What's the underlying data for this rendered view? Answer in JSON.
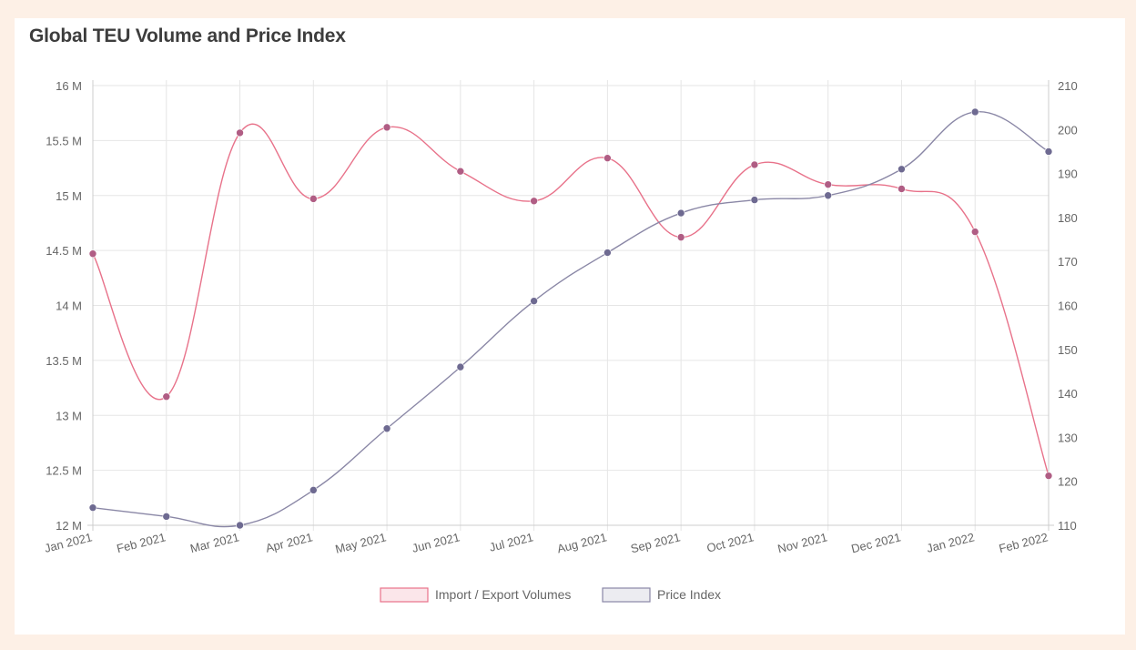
{
  "chart_data": {
    "type": "line",
    "title": "Global TEU Volume and Price Index",
    "categories": [
      "Jan 2021",
      "Feb 2021",
      "Mar 2021",
      "Apr 2021",
      "May 2021",
      "Jun 2021",
      "Jul 2021",
      "Aug 2021",
      "Sep 2021",
      "Oct 2021",
      "Nov 2021",
      "Dec 2021",
      "Jan 2022",
      "Feb 2022"
    ],
    "series": [
      {
        "name": "Import / Export Volumes",
        "axis": "left",
        "color": "#e8728a",
        "point_color": "#b05d84",
        "values": [
          14.47,
          13.17,
          15.57,
          14.97,
          15.62,
          15.22,
          14.95,
          15.34,
          14.62,
          15.28,
          15.1,
          15.06,
          14.67,
          12.45
        ]
      },
      {
        "name": "Price Index",
        "axis": "right",
        "color": "#8a87a6",
        "point_color": "#6e6a91",
        "values": [
          114,
          112,
          110,
          118,
          132,
          146,
          161,
          172,
          181,
          184,
          185,
          191,
          204,
          195
        ]
      }
    ],
    "y_left": {
      "min": 12,
      "max": 16,
      "ticks": [
        12,
        12.5,
        13,
        13.5,
        14,
        14.5,
        15,
        15.5,
        16
      ],
      "tick_labels": [
        "12 M",
        "12.5 M",
        "13 M",
        "13.5 M",
        "14 M",
        "14.5 M",
        "15 M",
        "15.5 M",
        "16 M"
      ]
    },
    "y_right": {
      "min": 110,
      "max": 210,
      "ticks": [
        110,
        120,
        130,
        140,
        150,
        160,
        170,
        180,
        190,
        200,
        210
      ],
      "tick_labels": [
        "110",
        "120",
        "130",
        "140",
        "150",
        "160",
        "170",
        "180",
        "190",
        "200",
        "210"
      ]
    },
    "xlabel": "",
    "ylabel": "",
    "grid": true,
    "legend": "bottom"
  }
}
